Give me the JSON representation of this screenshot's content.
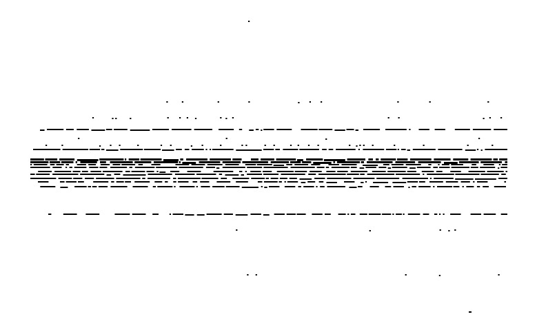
{
  "palette": {
    "background": "#ffffff",
    "ink": "#000000"
  }
}
